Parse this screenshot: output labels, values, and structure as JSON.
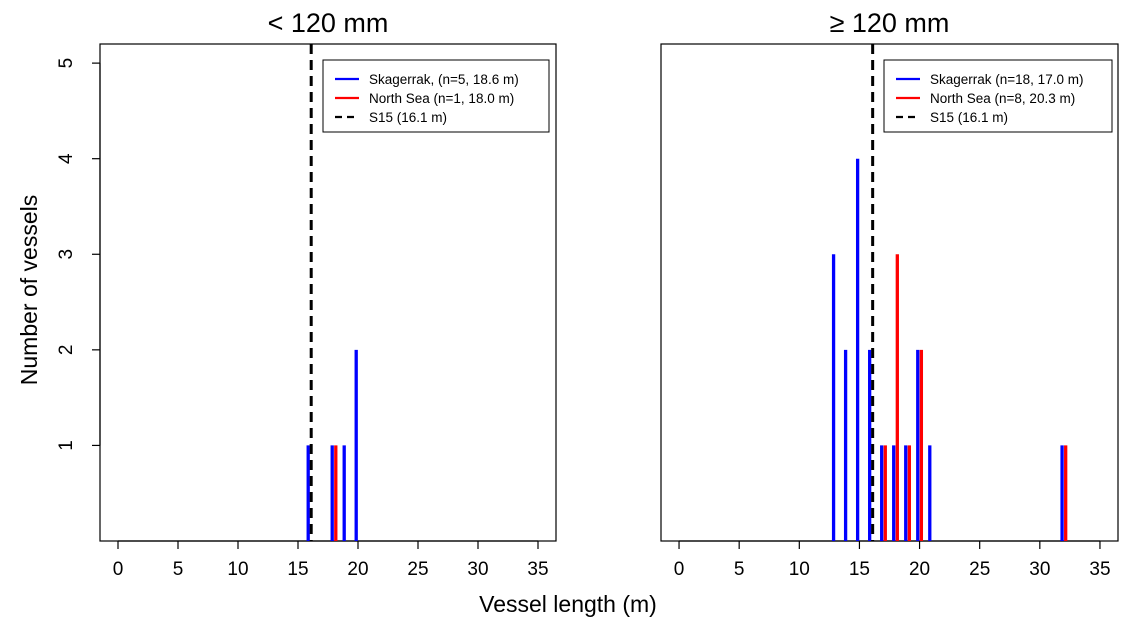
{
  "figure": {
    "xlabel": "Vessel length (m)",
    "ylabel": "Number of vessels"
  },
  "chart_data": [
    {
      "type": "bar",
      "title": "< 120 mm",
      "xlim": [
        -1.5,
        36.5
      ],
      "ylim": [
        0,
        5.2
      ],
      "xticks": [
        0,
        5,
        10,
        15,
        20,
        25,
        30,
        35
      ],
      "yticks": [
        1,
        2,
        3,
        4,
        5
      ],
      "show_yaxis": true,
      "grid": false,
      "legend_position": "top-right",
      "series": [
        {
          "name": "Skagerrak, (n=5, 18.6 m)",
          "color": "#0000ff",
          "offset": -0.15,
          "points": [
            {
              "x": 16,
              "y": 1
            },
            {
              "x": 18,
              "y": 1
            },
            {
              "x": 19,
              "y": 1
            },
            {
              "x": 20,
              "y": 2
            }
          ]
        },
        {
          "name": "North Sea (n=1, 18.0 m)",
          "color": "#ff0000",
          "offset": 0.15,
          "points": [
            {
              "x": 18,
              "y": 1
            }
          ]
        }
      ],
      "reference_line": {
        "name": "S15 (16.1 m)",
        "x": 16.1,
        "color": "#000000",
        "style": "dashed"
      }
    },
    {
      "type": "bar",
      "title": "≥ 120 mm",
      "xlim": [
        -1.5,
        36.5
      ],
      "ylim": [
        0,
        5.2
      ],
      "xticks": [
        0,
        5,
        10,
        15,
        20,
        25,
        30,
        35
      ],
      "yticks": [
        1,
        2,
        3,
        4,
        5
      ],
      "show_yaxis": false,
      "grid": false,
      "legend_position": "top-right",
      "series": [
        {
          "name": "Skagerrak (n=18, 17.0 m)",
          "color": "#0000ff",
          "offset": -0.15,
          "points": [
            {
              "x": 13,
              "y": 3
            },
            {
              "x": 14,
              "y": 2
            },
            {
              "x": 15,
              "y": 4
            },
            {
              "x": 16,
              "y": 2
            },
            {
              "x": 17,
              "y": 1
            },
            {
              "x": 18,
              "y": 1
            },
            {
              "x": 19,
              "y": 1
            },
            {
              "x": 20,
              "y": 2
            },
            {
              "x": 21,
              "y": 1
            },
            {
              "x": 32,
              "y": 1
            }
          ]
        },
        {
          "name": "North Sea (n=8, 20.3 m)",
          "color": "#ff0000",
          "offset": 0.15,
          "points": [
            {
              "x": 17,
              "y": 1
            },
            {
              "x": 18,
              "y": 3
            },
            {
              "x": 19,
              "y": 1
            },
            {
              "x": 20,
              "y": 2
            },
            {
              "x": 32,
              "y": 1
            }
          ]
        }
      ],
      "reference_line": {
        "name": "S15 (16.1 m)",
        "x": 16.1,
        "color": "#000000",
        "style": "dashed"
      }
    }
  ]
}
